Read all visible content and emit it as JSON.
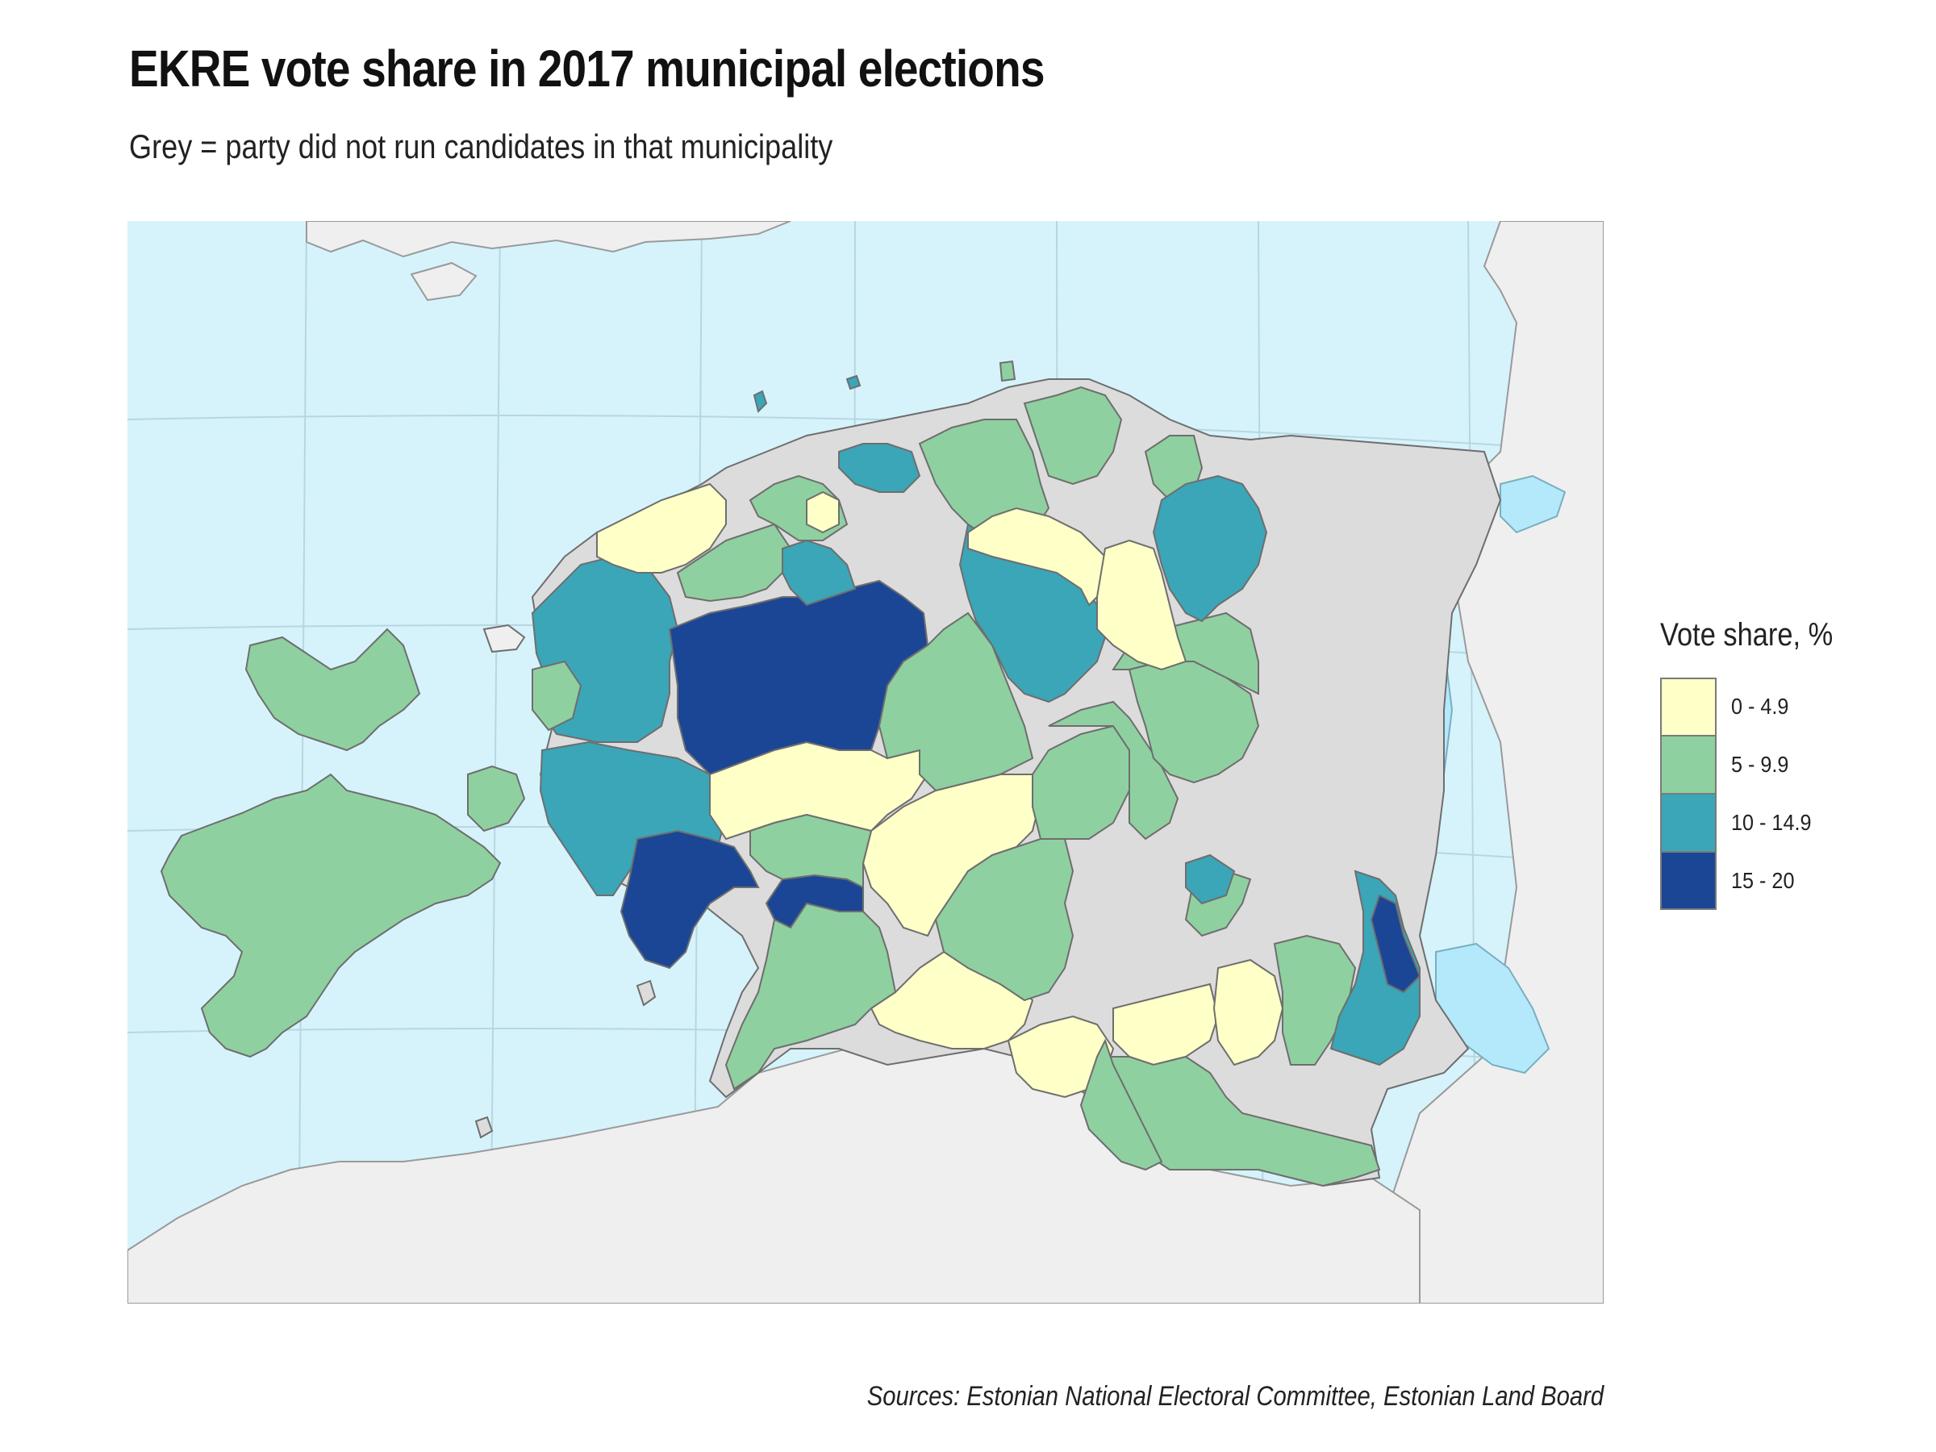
{
  "title": "EKRE vote share in 2017 municipal elections",
  "subtitle": "Grey = party did not run candidates in that municipality",
  "caption": "Sources: Estonian National Electoral Committee, Estonian Land Board",
  "legend": {
    "title": "Vote share, %",
    "items": [
      {
        "label": "0 - 4.9",
        "color": "#ffffc8"
      },
      {
        "label": "5 - 9.9",
        "color": "#8fd0a0"
      },
      {
        "label": "10 - 14.9",
        "color": "#3aa6b8"
      },
      {
        "label": "15 - 20",
        "color": "#1b4696"
      }
    ]
  },
  "map_colors": {
    "water": "#d6f3fc",
    "lake": "#b3e9fb",
    "foreign_land": "#efefef",
    "no_candidates": "#dcdcdc",
    "border": "#6e6e6e"
  }
}
